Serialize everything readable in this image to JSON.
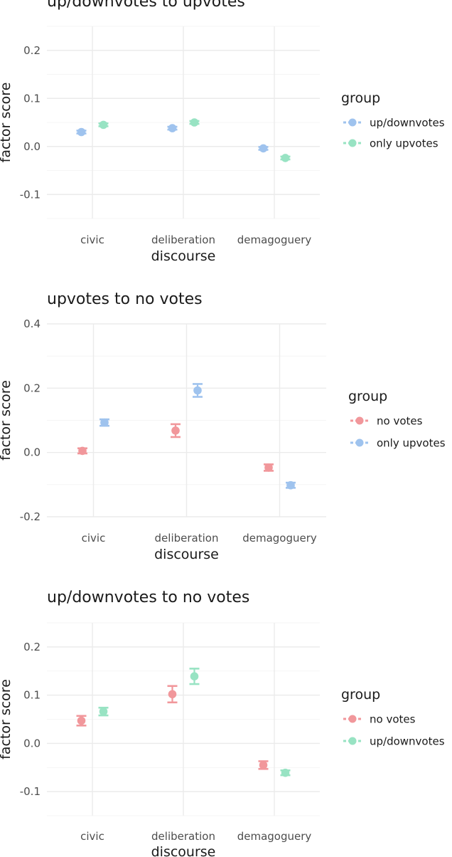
{
  "chart_data": [
    {
      "type": "scatter",
      "title": "up/downvotes to upvotes",
      "xlabel": "discourse",
      "ylabel": "factor score",
      "categories": [
        "civic",
        "deliberation",
        "demagoguery"
      ],
      "ylim": [
        -0.15,
        0.25
      ],
      "yticks": [
        -0.1,
        0.0,
        0.1,
        0.2
      ],
      "ytick_labels": [
        "-0.1",
        "0.0",
        "0.1",
        "0.2"
      ],
      "legend_title": "group",
      "legend_position": "right",
      "series": [
        {
          "name": "up/downvotes",
          "color": "#9fc3ee",
          "values": [
            0.03,
            0.038,
            -0.004
          ],
          "err": [
            0.003,
            0.003,
            0.003
          ]
        },
        {
          "name": "only upvotes",
          "color": "#98e3c3",
          "values": [
            0.045,
            0.05,
            -0.024
          ],
          "err": [
            0.003,
            0.003,
            0.003
          ]
        }
      ]
    },
    {
      "type": "scatter",
      "title": "upvotes to no votes",
      "xlabel": "discourse",
      "ylabel": "factor score",
      "categories": [
        "civic",
        "deliberation",
        "demagoguery"
      ],
      "ylim": [
        -0.2,
        0.4
      ],
      "yticks": [
        -0.2,
        0.0,
        0.2,
        0.4
      ],
      "ytick_labels": [
        "-0.2",
        "0.0",
        "0.2",
        "0.4"
      ],
      "legend_title": "group",
      "legend_position": "right",
      "series": [
        {
          "name": "no votes",
          "color": "#f1979b",
          "values": [
            0.005,
            0.068,
            -0.047
          ],
          "err": [
            0.008,
            0.02,
            0.01
          ]
        },
        {
          "name": "only upvotes",
          "color": "#9fc3ee",
          "values": [
            0.093,
            0.193,
            -0.102
          ],
          "err": [
            0.01,
            0.02,
            0.008
          ]
        }
      ]
    },
    {
      "type": "scatter",
      "title": "up/downvotes to no votes",
      "xlabel": "discourse",
      "ylabel": "factor score",
      "categories": [
        "civic",
        "deliberation",
        "demagoguery"
      ],
      "ylim": [
        -0.15,
        0.25
      ],
      "yticks": [
        -0.1,
        0.0,
        0.1,
        0.2
      ],
      "ytick_labels": [
        "-0.1",
        "0.0",
        "0.1",
        "0.2"
      ],
      "legend_title": "group",
      "legend_position": "right",
      "series": [
        {
          "name": "no votes",
          "color": "#f1979b",
          "values": [
            0.047,
            0.102,
            -0.045
          ],
          "err": [
            0.01,
            0.017,
            0.008
          ]
        },
        {
          "name": "up/downvotes",
          "color": "#98e3c3",
          "values": [
            0.066,
            0.139,
            -0.061
          ],
          "err": [
            0.008,
            0.016,
            0.005
          ]
        }
      ]
    }
  ]
}
